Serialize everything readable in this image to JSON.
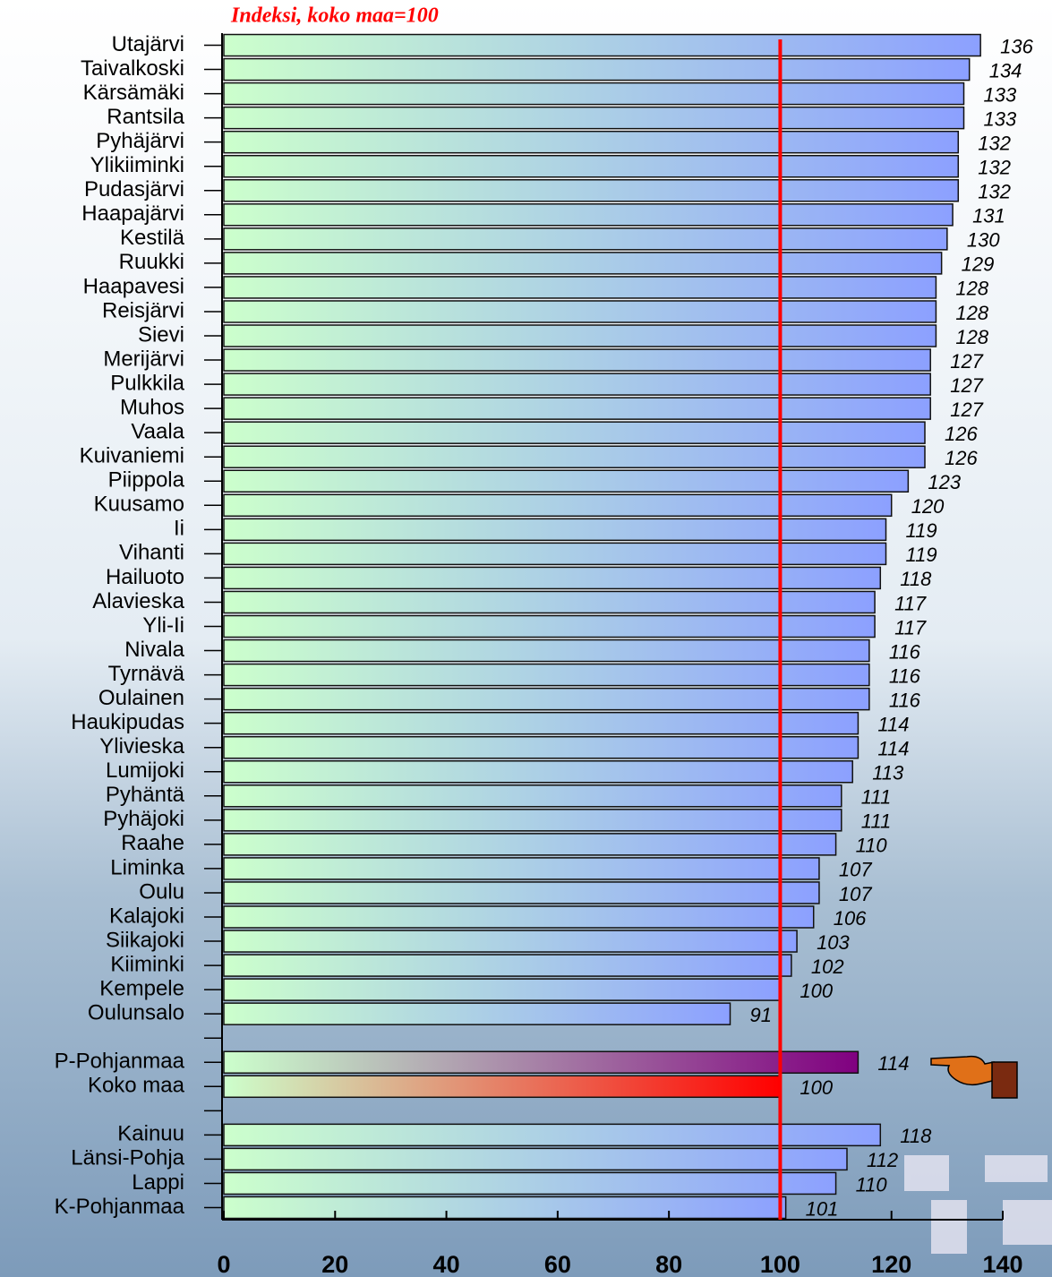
{
  "chart_data": {
    "type": "bar",
    "orientation": "horizontal",
    "title": "Indeksi, koko maa=100",
    "categories": [
      "Utajärvi",
      "Taivalkoski",
      "Kärsämäki",
      "Rantsila",
      "Pyhäjärvi",
      "Ylikiiminki",
      "Pudasjärvi",
      "Haapajärvi",
      "Kestilä",
      "Ruukki",
      "Haapavesi",
      "Reisjärvi",
      "Sievi",
      "Merijärvi",
      "Pulkkila",
      "Muhos",
      "Vaala",
      "Kuivaniemi",
      "Piippola",
      "Kuusamo",
      "Ii",
      "Vihanti",
      "Hailuoto",
      "Alavieska",
      "Yli-Ii",
      "Nivala",
      "Tyrnävä",
      "Oulainen",
      "Haukipudas",
      "Ylivieska",
      "Lumijoki",
      "Pyhäntä",
      "Pyhäjoki",
      "Raahe",
      "Liminka",
      "Oulu",
      "Kalajoki",
      "Siikajoki",
      "Kiiminki",
      "Kempele",
      "Oulunsalo",
      null,
      "P-Pohjanmaa",
      "Koko maa",
      null,
      "Kainuu",
      "Länsi-Pohja",
      "Lappi",
      "K-Pohjanmaa"
    ],
    "values": [
      136,
      134,
      133,
      133,
      132,
      132,
      132,
      131,
      130,
      129,
      128,
      128,
      128,
      127,
      127,
      127,
      126,
      126,
      123,
      120,
      119,
      119,
      118,
      117,
      117,
      116,
      116,
      116,
      114,
      114,
      113,
      111,
      111,
      110,
      107,
      107,
      106,
      103,
      102,
      100,
      91,
      null,
      114,
      100,
      null,
      118,
      112,
      110,
      101
    ],
    "color_start": "#ccffcc",
    "colors": [
      "#8ca0ff",
      "#8ca0ff",
      "#8ca0ff",
      "#8ca0ff",
      "#8ca0ff",
      "#8ca0ff",
      "#8ca0ff",
      "#8ca0ff",
      "#8ca0ff",
      "#8ca0ff",
      "#8ca0ff",
      "#8ca0ff",
      "#8ca0ff",
      "#8ca0ff",
      "#8ca0ff",
      "#8ca0ff",
      "#8ca0ff",
      "#8ca0ff",
      "#8ca0ff",
      "#8ca0ff",
      "#8ca0ff",
      "#8ca0ff",
      "#8ca0ff",
      "#8ca0ff",
      "#8ca0ff",
      "#8ca0ff",
      "#8ca0ff",
      "#8ca0ff",
      "#8ca0ff",
      "#8ca0ff",
      "#8ca0ff",
      "#8ca0ff",
      "#8ca0ff",
      "#8ca0ff",
      "#8ca0ff",
      "#8ca0ff",
      "#8ca0ff",
      "#8ca0ff",
      "#8ca0ff",
      "#8ca0ff",
      "#8ca0ff",
      null,
      "#800080",
      "#ff0000",
      null,
      "#8ca0ff",
      "#8ca0ff",
      "#8ca0ff",
      "#8ca0ff"
    ],
    "xlim": [
      0,
      140
    ],
    "xticks": [
      0,
      20,
      40,
      60,
      80,
      100,
      120,
      140
    ],
    "reference_line": {
      "value": 100,
      "color": "#ff0000"
    }
  }
}
